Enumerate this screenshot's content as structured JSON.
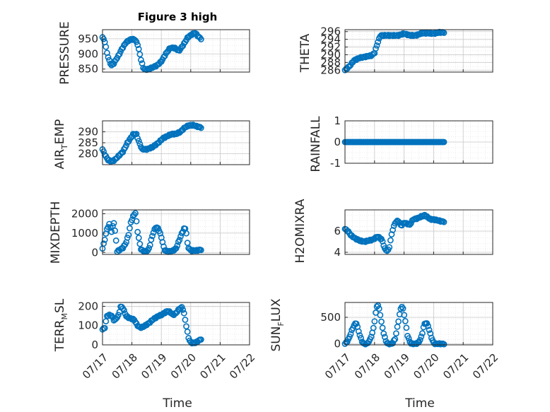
{
  "figure": {
    "title": "Figure 3 high",
    "xlabel": "Time"
  },
  "colors": {
    "marker": "#0072BD",
    "axis": "#262626",
    "grid": "#c8c8c8"
  },
  "chart_data": [
    {
      "id": "pressure",
      "type": "scatter",
      "ylabel": "PRESSURE",
      "title": "Figure 3 high",
      "ylim": [
        840,
        980
      ],
      "yticks": [
        850,
        900,
        950
      ],
      "ytick_labels": [
        "850",
        "900",
        "950"
      ],
      "xlim": [
        "07/17",
        "07/21 09:00"
      ],
      "grid": "on",
      "curve": [
        [
          0,
          955
        ],
        [
          0.08,
          940
        ],
        [
          0.15,
          905
        ],
        [
          0.22,
          880
        ],
        [
          0.3,
          862
        ],
        [
          0.38,
          868
        ],
        [
          0.45,
          880
        ],
        [
          0.55,
          895
        ],
        [
          0.65,
          915
        ],
        [
          0.8,
          938
        ],
        [
          0.95,
          948
        ],
        [
          1.1,
          948
        ],
        [
          1.2,
          930
        ],
        [
          1.3,
          885
        ],
        [
          1.38,
          855
        ],
        [
          1.45,
          848
        ],
        [
          1.55,
          850
        ],
        [
          1.7,
          855
        ],
        [
          1.85,
          862
        ],
        [
          2.0,
          875
        ],
        [
          2.15,
          900
        ],
        [
          2.3,
          920
        ],
        [
          2.45,
          920
        ],
        [
          2.6,
          910
        ],
        [
          2.75,
          930
        ],
        [
          2.9,
          955
        ],
        [
          3.05,
          965
        ],
        [
          3.15,
          970
        ],
        [
          3.25,
          958
        ],
        [
          3.35,
          950
        ]
      ]
    },
    {
      "id": "theta",
      "type": "scatter",
      "ylabel": "THETA",
      "ylim": [
        285.5,
        296.5
      ],
      "yticks": [
        286,
        288,
        290,
        292,
        294,
        296
      ],
      "ytick_labels": [
        "286",
        "288",
        "290",
        "292",
        "294",
        "296"
      ],
      "xlim": [
        "07/17",
        "07/21 09:00"
      ],
      "grid": "on",
      "curve": [
        [
          0,
          286
        ],
        [
          0.15,
          287
        ],
        [
          0.3,
          288.5
        ],
        [
          0.5,
          289.2
        ],
        [
          0.7,
          289.5
        ],
        [
          0.9,
          289.8
        ],
        [
          1.0,
          290.5
        ],
        [
          1.1,
          293
        ],
        [
          1.2,
          295
        ],
        [
          1.4,
          295
        ],
        [
          1.6,
          295
        ],
        [
          1.8,
          295
        ],
        [
          2.0,
          295.5
        ],
        [
          2.2,
          295
        ],
        [
          2.4,
          295
        ],
        [
          2.6,
          295.6
        ],
        [
          2.8,
          295.6
        ],
        [
          3.0,
          295.5
        ],
        [
          3.2,
          295.8
        ],
        [
          3.35,
          295.8
        ]
      ]
    },
    {
      "id": "air_temp",
      "type": "scatter",
      "ylabel": "AIR_TEMP",
      "ylim": [
        275,
        295
      ],
      "yticks": [
        280,
        285,
        290
      ],
      "ytick_labels": [
        "280",
        "285",
        "290"
      ],
      "xlim": [
        "07/17",
        "07/21 09:00"
      ],
      "grid": "on",
      "curve": [
        [
          0,
          282
        ],
        [
          0.1,
          279
        ],
        [
          0.2,
          277
        ],
        [
          0.3,
          276.5
        ],
        [
          0.4,
          277
        ],
        [
          0.55,
          279
        ],
        [
          0.7,
          281
        ],
        [
          0.85,
          285
        ],
        [
          0.95,
          287
        ],
        [
          1.05,
          289
        ],
        [
          1.15,
          289
        ],
        [
          1.25,
          285
        ],
        [
          1.35,
          282
        ],
        [
          1.5,
          282
        ],
        [
          1.7,
          283
        ],
        [
          1.9,
          285
        ],
        [
          2.05,
          287
        ],
        [
          2.2,
          288
        ],
        [
          2.35,
          289
        ],
        [
          2.5,
          289
        ],
        [
          2.65,
          290
        ],
        [
          2.8,
          292
        ],
        [
          2.95,
          293
        ],
        [
          3.1,
          293
        ],
        [
          3.2,
          292.5
        ],
        [
          3.35,
          292
        ]
      ]
    },
    {
      "id": "rainfall",
      "type": "scatter",
      "ylabel": "RAINFALL",
      "ylim": [
        -1,
        1
      ],
      "yticks": [
        -1,
        0,
        1
      ],
      "ytick_labels": [
        "-1",
        "0",
        "1"
      ],
      "xlim": [
        "07/17",
        "07/21 09:00"
      ],
      "grid": "on",
      "curve": [
        [
          0,
          0
        ],
        [
          3.35,
          0
        ]
      ]
    },
    {
      "id": "mixdepth",
      "type": "scatter",
      "ylabel": "MIXDEPTH",
      "ylim": [
        -100,
        2200
      ],
      "yticks": [
        0,
        1000,
        2000
      ],
      "ytick_labels": [
        "0",
        "1000",
        "2000"
      ],
      "xlim": [
        "07/17",
        "07/21 09:00"
      ],
      "grid": "on",
      "curve": [
        [
          0,
          200
        ],
        [
          0.08,
          700
        ],
        [
          0.15,
          1200
        ],
        [
          0.25,
          1500
        ],
        [
          0.3,
          1000
        ],
        [
          0.38,
          1600
        ],
        [
          0.45,
          800
        ],
        [
          0.5,
          50
        ],
        [
          0.6,
          150
        ],
        [
          0.7,
          250
        ],
        [
          0.8,
          500
        ],
        [
          0.9,
          1000
        ],
        [
          0.95,
          1500
        ],
        [
          1.05,
          1900
        ],
        [
          1.12,
          2050
        ],
        [
          1.2,
          1000
        ],
        [
          1.3,
          200
        ],
        [
          1.35,
          100
        ],
        [
          1.45,
          50
        ],
        [
          1.55,
          100
        ],
        [
          1.6,
          300
        ],
        [
          1.7,
          900
        ],
        [
          1.8,
          1300
        ],
        [
          1.9,
          1250
        ],
        [
          2.0,
          800
        ],
        [
          2.1,
          150
        ],
        [
          2.2,
          50
        ],
        [
          2.3,
          50
        ],
        [
          2.4,
          100
        ],
        [
          2.5,
          200
        ],
        [
          2.6,
          600
        ],
        [
          2.7,
          1000
        ],
        [
          2.8,
          1300
        ],
        [
          2.85,
          1000
        ],
        [
          2.9,
          300
        ],
        [
          3.0,
          100
        ],
        [
          3.2,
          100
        ],
        [
          3.35,
          150
        ]
      ]
    },
    {
      "id": "h2omixra",
      "type": "scatter",
      "ylabel": "H2OMIXRA",
      "ylim": [
        3.8,
        8
      ],
      "yticks": [
        4,
        6
      ],
      "ytick_labels": [
        "4",
        "6"
      ],
      "xlim": [
        "07/17",
        "07/21 09:00"
      ],
      "grid": "on",
      "curve": [
        [
          0,
          6.2
        ],
        [
          0.1,
          6
        ],
        [
          0.2,
          5.6
        ],
        [
          0.35,
          5.3
        ],
        [
          0.5,
          5.1
        ],
        [
          0.65,
          5
        ],
        [
          0.8,
          5.1
        ],
        [
          0.95,
          5.2
        ],
        [
          1.1,
          5.5
        ],
        [
          1.25,
          5.2
        ],
        [
          1.35,
          4.3
        ],
        [
          1.45,
          4.1
        ],
        [
          1.5,
          4.5
        ],
        [
          1.6,
          6
        ],
        [
          1.7,
          6.8
        ],
        [
          1.8,
          7
        ],
        [
          1.9,
          6.5
        ],
        [
          2.0,
          6.8
        ],
        [
          2.1,
          6.7
        ],
        [
          2.2,
          6.6
        ],
        [
          2.3,
          7.1
        ],
        [
          2.45,
          7.2
        ],
        [
          2.6,
          7.4
        ],
        [
          2.7,
          7.5
        ],
        [
          2.8,
          7.3
        ],
        [
          2.9,
          7.1
        ],
        [
          3.0,
          7.1
        ],
        [
          3.15,
          7.0
        ],
        [
          3.3,
          6.9
        ]
      ]
    },
    {
      "id": "terr_msl",
      "type": "scatter",
      "ylabel": "TERR_MSL",
      "ylim": [
        0,
        220
      ],
      "yticks": [
        0,
        100,
        200
      ],
      "ytick_labels": [
        "0",
        "100",
        "200"
      ],
      "xlim": [
        "07/17",
        "07/21 09:00"
      ],
      "grid": "on",
      "xtick_labels": [
        "07/17",
        "07/18",
        "07/19",
        "07/20",
        "07/21",
        "07/22"
      ],
      "xlabel": "Time",
      "curve": [
        [
          0,
          80
        ],
        [
          0.08,
          90
        ],
        [
          0.15,
          150
        ],
        [
          0.25,
          155
        ],
        [
          0.32,
          150
        ],
        [
          0.4,
          125
        ],
        [
          0.48,
          140
        ],
        [
          0.55,
          155
        ],
        [
          0.62,
          200
        ],
        [
          0.7,
          190
        ],
        [
          0.8,
          150
        ],
        [
          0.9,
          140
        ],
        [
          1.0,
          135
        ],
        [
          1.08,
          130
        ],
        [
          1.15,
          110
        ],
        [
          1.22,
          95
        ],
        [
          1.3,
          90
        ],
        [
          1.4,
          95
        ],
        [
          1.5,
          105
        ],
        [
          1.6,
          115
        ],
        [
          1.7,
          130
        ],
        [
          1.8,
          140
        ],
        [
          1.9,
          150
        ],
        [
          2.0,
          155
        ],
        [
          2.1,
          165
        ],
        [
          2.2,
          175
        ],
        [
          2.3,
          170
        ],
        [
          2.4,
          155
        ],
        [
          2.5,
          165
        ],
        [
          2.6,
          185
        ],
        [
          2.7,
          195
        ],
        [
          2.75,
          180
        ],
        [
          2.8,
          140
        ],
        [
          2.87,
          80
        ],
        [
          2.92,
          40
        ],
        [
          2.98,
          15
        ],
        [
          3.05,
          10
        ],
        [
          3.15,
          10
        ],
        [
          3.25,
          20
        ],
        [
          3.35,
          30
        ]
      ]
    },
    {
      "id": "sun_flux",
      "type": "scatter",
      "ylabel": "SUN_FLUX",
      "ylim": [
        -20,
        780
      ],
      "yticks": [
        0,
        500
      ],
      "ytick_labels": [
        "0",
        "500"
      ],
      "xlim": [
        "07/17",
        "07/21 09:00"
      ],
      "grid": "on",
      "xtick_labels": [
        "07/17",
        "07/18",
        "07/19",
        "07/20",
        "07/21",
        "07/22"
      ],
      "xlabel": "Time",
      "curve": [
        [
          0,
          0
        ],
        [
          0.1,
          60
        ],
        [
          0.18,
          170
        ],
        [
          0.25,
          280
        ],
        [
          0.32,
          360
        ],
        [
          0.38,
          400
        ],
        [
          0.42,
          320
        ],
        [
          0.48,
          200
        ],
        [
          0.55,
          80
        ],
        [
          0.6,
          20
        ],
        [
          0.65,
          0
        ],
        [
          0.75,
          0
        ],
        [
          0.85,
          80
        ],
        [
          0.95,
          250
        ],
        [
          1.02,
          500
        ],
        [
          1.07,
          700
        ],
        [
          1.12,
          730
        ],
        [
          1.18,
          600
        ],
        [
          1.25,
          350
        ],
        [
          1.33,
          150
        ],
        [
          1.4,
          30
        ],
        [
          1.45,
          0
        ],
        [
          1.6,
          0
        ],
        [
          1.7,
          100
        ],
        [
          1.8,
          400
        ],
        [
          1.88,
          650
        ],
        [
          1.92,
          710
        ],
        [
          1.97,
          650
        ],
        [
          2.05,
          400
        ],
        [
          2.12,
          150
        ],
        [
          2.2,
          30
        ],
        [
          2.25,
          0
        ],
        [
          2.4,
          0
        ],
        [
          2.5,
          30
        ],
        [
          2.6,
          150
        ],
        [
          2.65,
          300
        ],
        [
          2.7,
          380
        ],
        [
          2.75,
          400
        ],
        [
          2.82,
          330
        ],
        [
          2.88,
          200
        ],
        [
          2.95,
          80
        ],
        [
          3.0,
          20
        ],
        [
          3.05,
          0
        ],
        [
          3.2,
          0
        ],
        [
          3.35,
          0
        ]
      ]
    }
  ]
}
